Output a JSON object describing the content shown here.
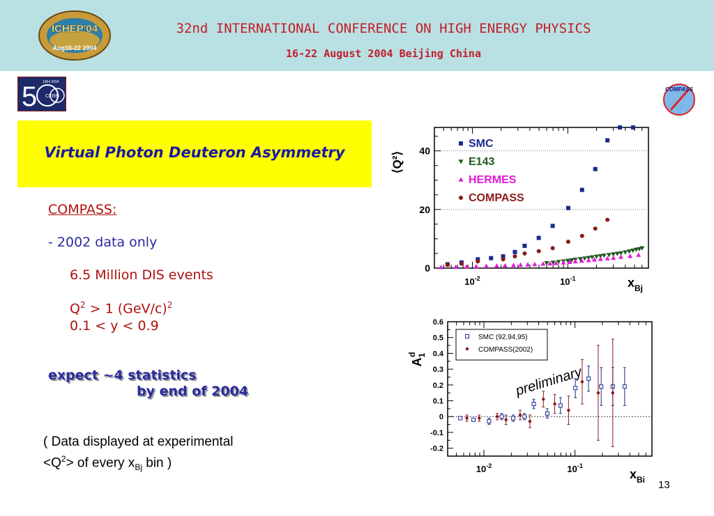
{
  "header": {
    "conference_title": "32nd INTERNATIONAL CONFERENCE ON HIGH ENERGY PHYSICS",
    "conference_dates": "16-22 August 2004 Beijing China",
    "ichep_logo_text": "ICHEP'04",
    "ichep_logo_dates": "Aug16-22 2004",
    "cern_logo_text": "CERN",
    "cern_logo_years": "1954 2004",
    "compass_logo_text": "COMPASS",
    "colors": {
      "band": "#b9e0e3",
      "text": "#c31d2a"
    }
  },
  "slide": {
    "title": "Virtual Photon Deuteron Asymmetry",
    "compass_label": "COMPASS:",
    "data_line": "- 2002 data only",
    "events": "6.5 Million DIS events",
    "q2_prefix": "Q",
    "q2_sup": "2",
    "q2_mid": " > 1 (GeV/c)",
    "q2_sup2": "2",
    "y_range": "0.1 < y < 0.9",
    "expect_line1": "expect ~4 statistics",
    "expect_line2": "by end of 2004",
    "note_line1": "( Data displayed at experimental",
    "note_line2_a": "<Q",
    "note_line2_sup": "2",
    "note_line2_b": "> of every x",
    "note_line2_sub": "Bj",
    "note_line2_c": " bin )",
    "page_number": "13",
    "colors": {
      "title_box": "#ffff00",
      "title_text": "#1a1aa0",
      "red": "#b01010",
      "blue": "#2a2aa0"
    }
  },
  "chart_data": [
    {
      "type": "scatter",
      "ylabel": "⟨Q²⟩",
      "xlabel": "x",
      "xlabel_sub": "Bj",
      "xscale": "log",
      "xlim": [
        0.004,
        0.7
      ],
      "ylim": [
        0,
        48
      ],
      "y_ticks": [
        0,
        20,
        40
      ],
      "x_ticks": [
        {
          "value": 0.01,
          "label": "10",
          "sup": "-2"
        },
        {
          "value": 0.1,
          "label": "10",
          "sup": "-1"
        }
      ],
      "gridlines": "dotted-horizontal",
      "legend_position": "top-left",
      "series": [
        {
          "name": "SMC",
          "marker": "square",
          "color": "#1a2a8c",
          "x": [
            0.0055,
            0.0077,
            0.0114,
            0.0157,
            0.021,
            0.0279,
            0.0353,
            0.0496,
            0.0694,
            0.101,
            0.141,
            0.194,
            0.26,
            0.351,
            0.483
          ],
          "y": [
            1.3,
            1.9,
            3.0,
            3.4,
            4.0,
            5.5,
            7.6,
            10.3,
            14.4,
            20.5,
            26.7,
            33.8,
            43.6,
            48.0,
            48.0
          ]
        },
        {
          "name": "E143",
          "marker": "triangle-down",
          "color": "#1f5a1f",
          "x": [
            0.06,
            0.07,
            0.08,
            0.09,
            0.1,
            0.11,
            0.12,
            0.135,
            0.15,
            0.165,
            0.18,
            0.2,
            0.22,
            0.24,
            0.27,
            0.3,
            0.33,
            0.36,
            0.4,
            0.44,
            0.48,
            0.52,
            0.56,
            0.6
          ],
          "y": [
            1.7,
            1.9,
            2.1,
            2.3,
            2.5,
            2.7,
            2.9,
            3.1,
            3.3,
            3.5,
            3.7,
            3.9,
            4.1,
            4.3,
            4.5,
            4.7,
            4.9,
            5.1,
            5.4,
            5.7,
            6.0,
            6.3,
            6.5,
            6.8
          ]
        },
        {
          "name": "HERMES",
          "marker": "triangle-up",
          "color": "#e01ad8",
          "x": [
            0.0047,
            0.0067,
            0.0087,
            0.011,
            0.014,
            0.018,
            0.022,
            0.027,
            0.032,
            0.038,
            0.045,
            0.055,
            0.065,
            0.075,
            0.09,
            0.105,
            0.12,
            0.14,
            0.165,
            0.19,
            0.22,
            0.26,
            0.3,
            0.36,
            0.45,
            0.55
          ],
          "y": [
            0.3,
            0.4,
            0.5,
            0.6,
            0.7,
            0.8,
            0.9,
            1.0,
            1.1,
            1.2,
            1.3,
            1.5,
            1.6,
            1.7,
            1.9,
            2.1,
            2.3,
            2.5,
            2.7,
            2.9,
            3.1,
            3.3,
            3.5,
            3.8,
            4.1,
            4.5
          ]
        },
        {
          "name": "COMPASS",
          "marker": "circle",
          "color": "#8c1a1a",
          "x": [
            0.0055,
            0.0077,
            0.0114,
            0.021,
            0.0279,
            0.0353,
            0.0496,
            0.0694,
            0.101,
            0.141,
            0.194,
            0.26
          ],
          "y": [
            1.1,
            1.5,
            2.3,
            3.0,
            4.0,
            5.0,
            5.8,
            6.8,
            9.0,
            11.0,
            13.5,
            16.5
          ]
        }
      ]
    },
    {
      "type": "scatter",
      "ylabel": "A",
      "ylabel_sub": "1",
      "ylabel_sup": "d",
      "xlabel": "x",
      "xlabel_sub": "Bi",
      "xscale": "log",
      "xlim": [
        0.004,
        0.7
      ],
      "ylim": [
        -0.25,
        0.6
      ],
      "y_ticks": [
        -0.2,
        -0.1,
        0,
        0.1,
        0.2,
        0.3,
        0.4,
        0.5,
        0.6
      ],
      "x_ticks": [
        {
          "value": 0.01,
          "label": "10",
          "sup": "-2"
        },
        {
          "value": 0.1,
          "label": "10",
          "sup": "-1"
        }
      ],
      "zero_line": "dotted",
      "legend_position": "top-left",
      "annotation": "preliminary",
      "series": [
        {
          "name": "SMC (92,94,95)",
          "marker": "open-square",
          "color": "#1a2a8c",
          "x": [
            0.0055,
            0.0077,
            0.0114,
            0.0157,
            0.021,
            0.0279,
            0.0353,
            0.0496,
            0.0694,
            0.101,
            0.141,
            0.194,
            0.26,
            0.351
          ],
          "y": [
            -0.01,
            -0.02,
            -0.03,
            0.0,
            -0.01,
            0.0,
            0.08,
            0.02,
            0.07,
            0.18,
            0.24,
            0.19,
            0.19,
            0.19
          ],
          "err": [
            0.01,
            0.01,
            0.02,
            0.02,
            0.02,
            0.02,
            0.03,
            0.03,
            0.05,
            0.06,
            0.08,
            0.12,
            0.12,
            0.12
          ]
        },
        {
          "name": "COMPASS(2002)",
          "marker": "circle",
          "color": "#8c1a1a",
          "x": [
            0.0065,
            0.0089,
            0.014,
            0.0175,
            0.025,
            0.032,
            0.045,
            0.06,
            0.085,
            0.12,
            0.18,
            0.26
          ],
          "y": [
            -0.01,
            -0.01,
            0.0,
            -0.02,
            0.01,
            -0.03,
            0.11,
            0.08,
            0.04,
            0.22,
            0.15,
            0.15
          ],
          "err": [
            0.02,
            0.02,
            0.02,
            0.03,
            0.03,
            0.04,
            0.05,
            0.06,
            0.09,
            0.14,
            0.3,
            0.34
          ]
        }
      ]
    }
  ]
}
